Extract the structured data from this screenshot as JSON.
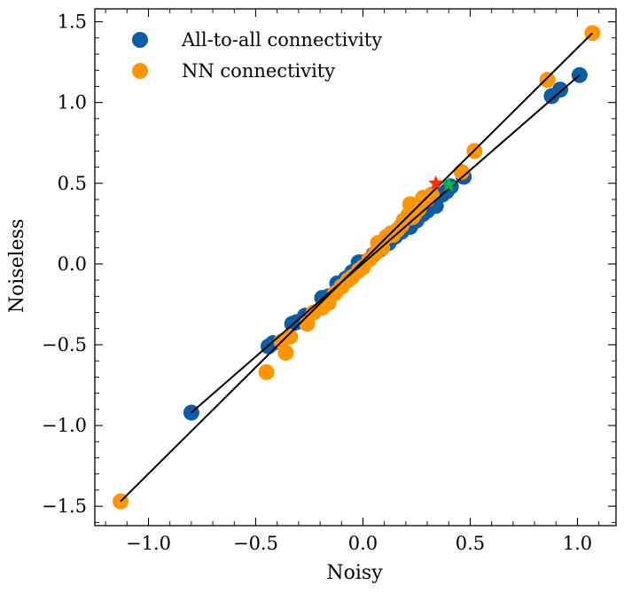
{
  "chart_data": {
    "type": "scatter",
    "title": "",
    "xlabel": "Noisy",
    "ylabel": "Noiseless",
    "xlim": [
      -1.25,
      1.18
    ],
    "ylim": [
      -1.62,
      1.58
    ],
    "xticks": [
      -1.0,
      -0.5,
      0.0,
      0.5,
      1.0
    ],
    "xtick_labels": [
      "−1.0",
      "−0.5",
      "0.0",
      "0.5",
      "1.0"
    ],
    "yticks": [
      -1.5,
      -1.0,
      -0.5,
      0.0,
      0.5,
      1.0,
      1.5
    ],
    "ytick_labels": [
      "−1.5",
      "−1.0",
      "−0.5",
      "0.0",
      "0.5",
      "1.0",
      "1.5"
    ],
    "legend_position": "top-left",
    "series": [
      {
        "name": "All-to-all connectivity",
        "color": "#0C5DA5",
        "points": [
          [
            -0.8,
            -0.92
          ],
          [
            -0.44,
            -0.51
          ],
          [
            -0.42,
            -0.49
          ],
          [
            -0.33,
            -0.37
          ],
          [
            -0.31,
            -0.36
          ],
          [
            -0.27,
            -0.32
          ],
          [
            -0.19,
            -0.21
          ],
          [
            -0.16,
            -0.2
          ],
          [
            -0.12,
            -0.12
          ],
          [
            -0.08,
            -0.09
          ],
          [
            -0.05,
            -0.05
          ],
          [
            -0.02,
            0.01
          ],
          [
            0.0,
            0.01
          ],
          [
            0.05,
            0.06
          ],
          [
            0.08,
            0.09
          ],
          [
            0.12,
            0.13
          ],
          [
            0.15,
            0.17
          ],
          [
            0.18,
            0.2
          ],
          [
            0.22,
            0.23
          ],
          [
            0.25,
            0.27
          ],
          [
            0.28,
            0.31
          ],
          [
            0.3,
            0.33
          ],
          [
            0.34,
            0.36
          ],
          [
            0.37,
            0.43
          ],
          [
            0.39,
            0.45
          ],
          [
            0.41,
            0.48
          ],
          [
            0.47,
            0.54
          ],
          [
            0.88,
            1.04
          ],
          [
            0.92,
            1.08
          ],
          [
            1.01,
            1.17
          ]
        ],
        "fit": [
          [
            -0.8,
            -0.92
          ],
          [
            1.01,
            1.17
          ]
        ]
      },
      {
        "name": "NN connectivity",
        "color": "#FF9500",
        "points": [
          [
            -1.13,
            -1.47
          ],
          [
            -0.45,
            -0.67
          ],
          [
            -0.38,
            -0.48
          ],
          [
            -0.36,
            -0.55
          ],
          [
            -0.34,
            -0.45
          ],
          [
            -0.26,
            -0.37
          ],
          [
            -0.23,
            -0.3
          ],
          [
            -0.19,
            -0.27
          ],
          [
            -0.16,
            -0.24
          ],
          [
            -0.13,
            -0.18
          ],
          [
            -0.1,
            -0.14
          ],
          [
            -0.07,
            -0.1
          ],
          [
            -0.05,
            -0.08
          ],
          [
            -0.02,
            -0.04
          ],
          [
            0.0,
            -0.02
          ],
          [
            0.03,
            0.03
          ],
          [
            0.06,
            0.07
          ],
          [
            0.07,
            0.13
          ],
          [
            0.09,
            0.1
          ],
          [
            0.11,
            0.17
          ],
          [
            0.13,
            0.19
          ],
          [
            0.14,
            0.18
          ],
          [
            0.16,
            0.21
          ],
          [
            0.18,
            0.24
          ],
          [
            0.19,
            0.27
          ],
          [
            0.21,
            0.3
          ],
          [
            0.23,
            0.29
          ],
          [
            0.24,
            0.31
          ],
          [
            0.26,
            0.34
          ],
          [
            0.22,
            0.37
          ],
          [
            0.28,
            0.41
          ],
          [
            0.3,
            0.4
          ],
          [
            0.32,
            0.43
          ],
          [
            0.46,
            0.57
          ],
          [
            0.52,
            0.7
          ],
          [
            0.86,
            1.14
          ],
          [
            1.07,
            1.43
          ]
        ],
        "fit": [
          [
            -1.13,
            -1.47
          ],
          [
            1.07,
            1.43
          ]
        ]
      }
    ],
    "highlights": [
      {
        "shape": "star",
        "color": "#FF2C00",
        "point": [
          0.34,
          0.5
        ]
      },
      {
        "shape": "star",
        "color": "#00B945",
        "point": [
          0.4,
          0.49
        ]
      }
    ]
  }
}
